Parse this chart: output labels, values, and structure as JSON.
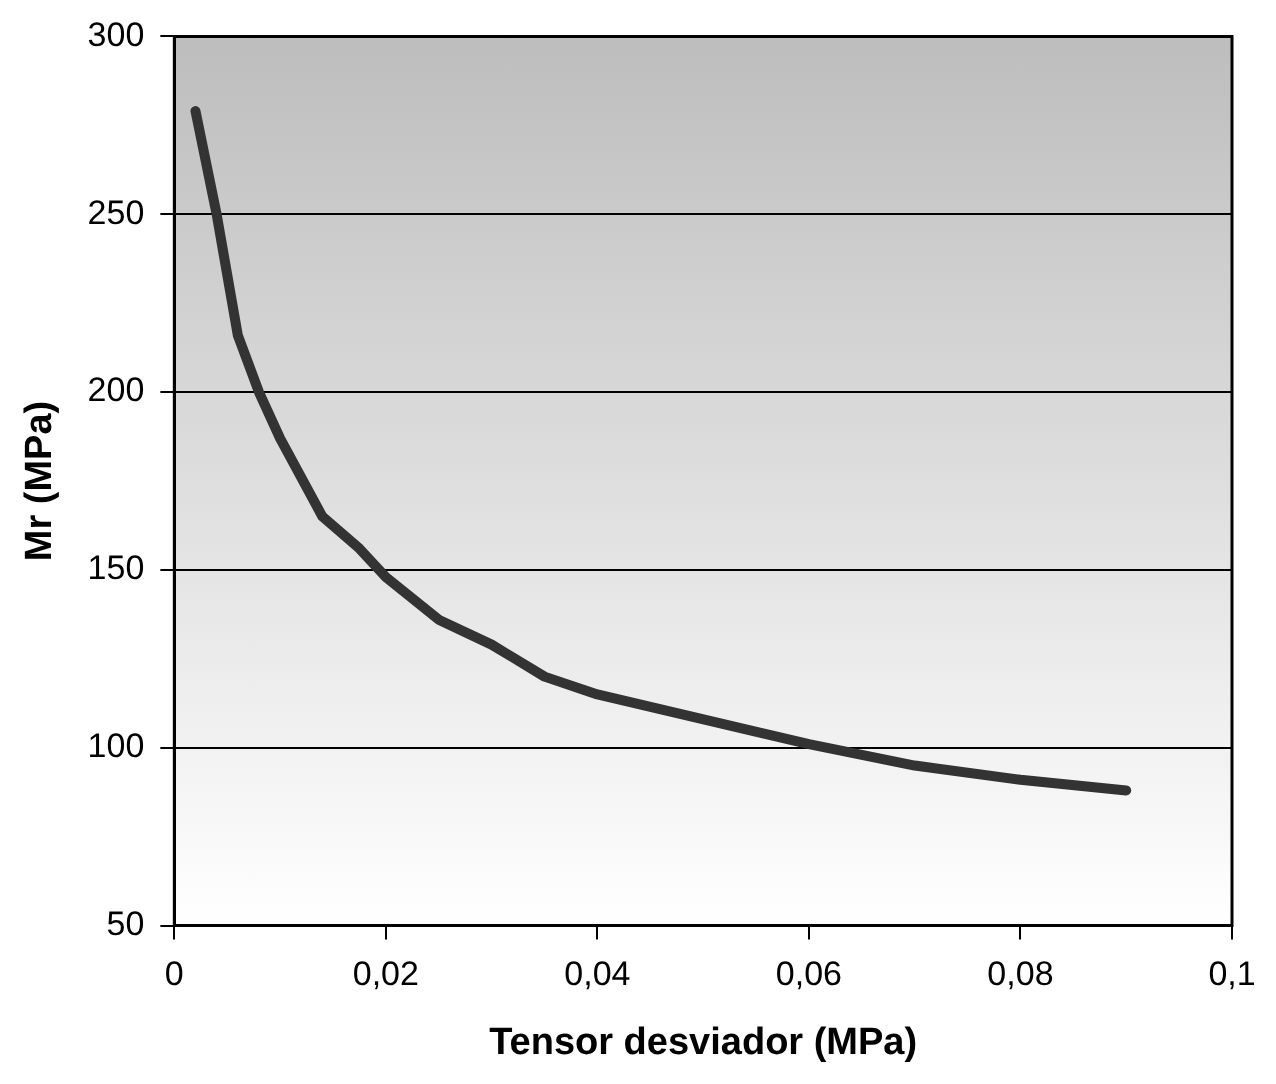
{
  "chart_data": {
    "type": "line",
    "xlabel": "Tensor desviador (MPa)",
    "ylabel": "Mr (MPa)",
    "x": [
      0.002,
      0.004,
      0.006,
      0.008,
      0.01,
      0.014,
      0.0175,
      0.02,
      0.025,
      0.03,
      0.035,
      0.04,
      0.06,
      0.07,
      0.08,
      0.09
    ],
    "series": [
      {
        "color": "#333333",
        "values": [
          279,
          250,
          216,
          200,
          187,
          165,
          156,
          148,
          136,
          129,
          120,
          115,
          101,
          95,
          91,
          88
        ]
      }
    ],
    "xlim": [
      0,
      0.1
    ],
    "xticks": [
      0,
      {
        "value": 0.02,
        "label": "0,02"
      },
      {
        "value": 0.04,
        "label": "0,04"
      },
      {
        "value": 0.06,
        "label": "0,06"
      },
      {
        "value": 0.08,
        "label": "0,08"
      },
      {
        "value": 0.1,
        "label": "0,1"
      }
    ],
    "ylim": [
      50,
      300
    ],
    "yticks": [
      50,
      100,
      150,
      200,
      250,
      300
    ],
    "grid": "y",
    "legend": false,
    "marker": "none",
    "line_style": "solid"
  }
}
